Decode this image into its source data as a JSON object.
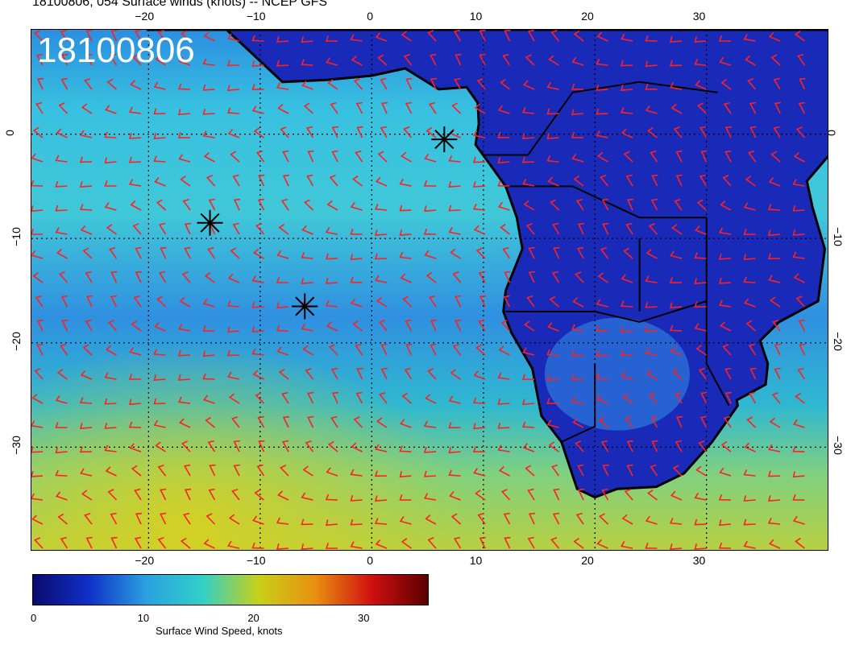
{
  "title": "18100806, 054 Surface winds (knots) -- NCEP GFS",
  "stamp": "18100806",
  "lon_ticks": [
    "−20",
    "−10",
    "0",
    "10",
    "20",
    "30"
  ],
  "lon_values": [
    -20,
    -10,
    0,
    10,
    20,
    30
  ],
  "lat_ticks": [
    "0",
    "−10",
    "−20",
    "−30"
  ],
  "lat_values": [
    0,
    -10,
    -20,
    -30
  ],
  "extent": {
    "lon": [
      -30.5,
      41
    ],
    "lat": [
      -40,
      10
    ]
  },
  "colorbar": {
    "ticks": [
      "0",
      "10",
      "20",
      "30"
    ],
    "tick_values": [
      0,
      10,
      20,
      30
    ],
    "range": [
      0,
      36
    ],
    "label": "Surface Wind Speed, knots",
    "colors": [
      "#0a0a6e",
      "#1030c8",
      "#2aa0e0",
      "#30d0c8",
      "#c8d018",
      "#e89010",
      "#d01010",
      "#5a0000"
    ]
  },
  "markers": [
    {
      "name": "star-marker",
      "lon": 6.5,
      "lat": -0.5
    },
    {
      "name": "star-marker",
      "lon": -14.5,
      "lat": -8.5
    },
    {
      "name": "star-marker",
      "lon": -6,
      "lat": -16.5
    }
  ],
  "colors": {
    "barb": "#ff2020",
    "land_outline": "#000000",
    "grid": "#000000"
  }
}
